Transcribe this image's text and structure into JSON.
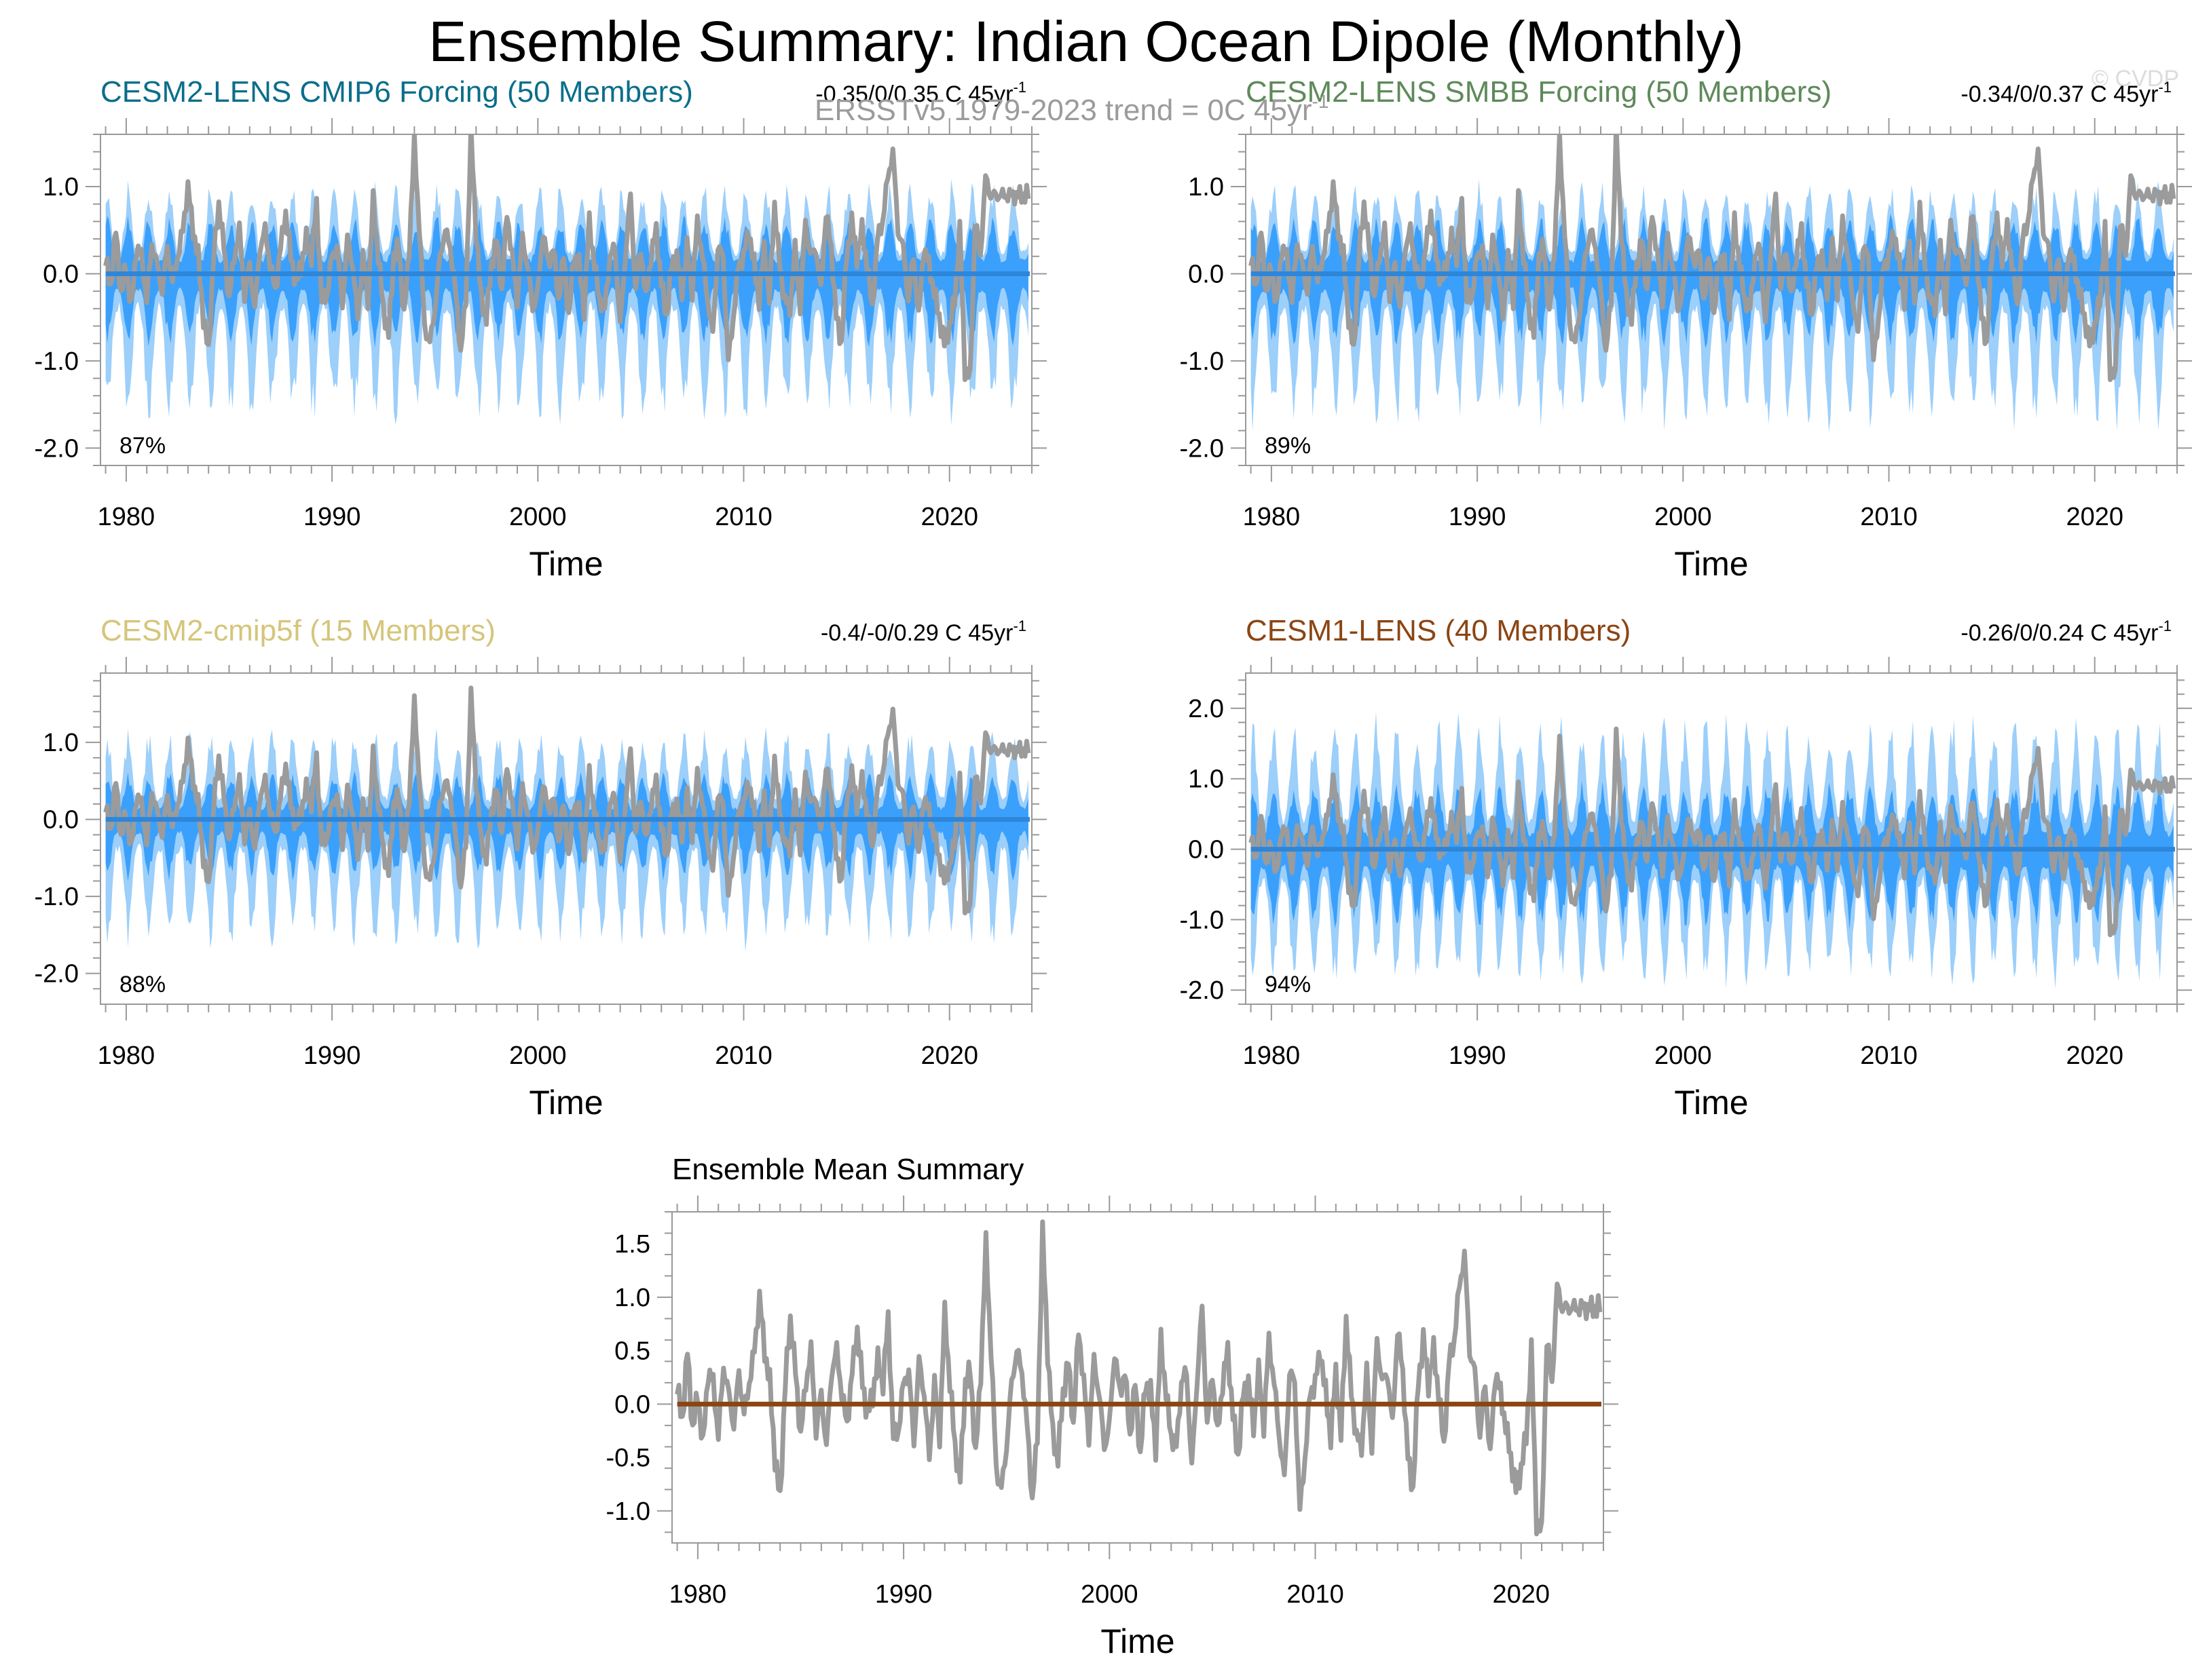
{
  "figure": {
    "title": "Ensemble Summary: Indian Ocean Dipole (Monthly)",
    "obs_note": "ERSSTv5 1979-2023 trend = 0C 45yr",
    "obs_note_sup": "-1",
    "copyright": "© CVDP"
  },
  "colors": {
    "outer_band": "#9ccffa",
    "inner_band": "#3aa0fb",
    "ens_mean_line": "#2e86d9",
    "obs_line": "#9b9b9b",
    "summary_mean_line": "#8b4513",
    "axis": "#999999",
    "text": "#000000",
    "title_cesm2_lens": "#0b6e8a",
    "title_smbb": "#5e8a5a",
    "title_cmip5f": "#d6c57a",
    "title_cesm1": "#8b4513"
  },
  "chart_data": [
    {
      "id": "p1",
      "type": "area",
      "title": "CESM2-LENS CMIP6 Forcing (50 Members)",
      "trend_text": "-0.35/0/0.35 C 45yr",
      "trend_sup": "-1",
      "percent_label": "87%",
      "xlabel": "Time",
      "xlim": [
        1978.75,
        2024.0
      ],
      "ylim": [
        -2.2,
        1.6
      ],
      "yticks": [
        -2.0,
        -1.0,
        0.0,
        1.0
      ],
      "ytick_labels": [
        "-2.0",
        "-1.0",
        "0.0",
        "1.0"
      ],
      "xticks": [
        1980,
        1990,
        2000,
        2010,
        2020
      ],
      "xtick_labels": [
        "1980",
        "1990",
        "2000",
        "2010",
        "2020"
      ],
      "series": [
        {
          "name": "ensemble 10-90% range",
          "style": "outer_band",
          "amplitude_lower": -1.55,
          "amplitude_upper": 0.95
        },
        {
          "name": "ensemble 25-75% range",
          "style": "inner_band",
          "amplitude_lower": -0.75,
          "amplitude_upper": 0.6
        },
        {
          "name": "ensemble mean",
          "style": "ens_mean_line",
          "value": 0.0
        },
        {
          "name": "ERSSTv5 observations",
          "style": "obs_line",
          "source": "obs"
        }
      ]
    },
    {
      "id": "p2",
      "type": "area",
      "title": "CESM2-LENS SMBB Forcing (50 Members)",
      "trend_text": "-0.34/0/0.37 C 45yr",
      "trend_sup": "-1",
      "percent_label": "89%",
      "xlabel": "Time",
      "xlim": [
        1978.75,
        2024.0
      ],
      "ylim": [
        -2.2,
        1.6
      ],
      "yticks": [
        -2.0,
        -1.0,
        0.0,
        1.0
      ],
      "ytick_labels": [
        "-2.0",
        "-1.0",
        "0.0",
        "1.0"
      ],
      "xticks": [
        1980,
        1990,
        2000,
        2010,
        2020
      ],
      "xtick_labels": [
        "1980",
        "1990",
        "2000",
        "2010",
        "2020"
      ],
      "series": [
        {
          "name": "ensemble 10-90% range",
          "style": "outer_band",
          "amplitude_lower": -1.6,
          "amplitude_upper": 0.95
        },
        {
          "name": "ensemble 25-75% range",
          "style": "inner_band",
          "amplitude_lower": -0.75,
          "amplitude_upper": 0.6
        },
        {
          "name": "ensemble mean",
          "style": "ens_mean_line",
          "value": 0.0
        },
        {
          "name": "ERSSTv5 observations",
          "style": "obs_line",
          "source": "obs"
        }
      ]
    },
    {
      "id": "p3",
      "type": "area",
      "title": "CESM2-cmip5f (15 Members)",
      "trend_text": "-0.4/-0/0.29 C 45yr",
      "trend_sup": "-1",
      "percent_label": "88%",
      "xlabel": "Time",
      "xlim": [
        1978.75,
        2024.0
      ],
      "ylim": [
        -2.4,
        1.9
      ],
      "yticks": [
        -2.0,
        -1.0,
        0.0,
        1.0
      ],
      "ytick_labels": [
        "-2.0",
        "-1.0",
        "0.0",
        "1.0"
      ],
      "xticks": [
        1980,
        1990,
        2000,
        2010,
        2020
      ],
      "xtick_labels": [
        "1980",
        "1990",
        "2000",
        "2010",
        "2020"
      ],
      "series": [
        {
          "name": "ensemble 10-90% range",
          "style": "outer_band",
          "amplitude_lower": -1.5,
          "amplitude_upper": 1.05
        },
        {
          "name": "ensemble 25-75% range",
          "style": "inner_band",
          "amplitude_lower": -0.7,
          "amplitude_upper": 0.55
        },
        {
          "name": "ensemble mean",
          "style": "ens_mean_line",
          "value": 0.0
        },
        {
          "name": "ERSSTv5 observations",
          "style": "obs_line",
          "source": "obs"
        }
      ]
    },
    {
      "id": "p4",
      "type": "area",
      "title": "CESM1-LENS (40 Members)",
      "trend_text": "-0.26/0/0.24 C 45yr",
      "trend_sup": "-1",
      "percent_label": "94%",
      "xlabel": "Time",
      "xlim": [
        1978.75,
        2024.0
      ],
      "ylim": [
        -2.2,
        2.5
      ],
      "yticks": [
        -2.0,
        -1.0,
        0.0,
        1.0,
        2.0
      ],
      "ytick_labels": [
        "-2.0",
        "-1.0",
        "0.0",
        "1.0",
        "2.0"
      ],
      "xticks": [
        1980,
        1990,
        2000,
        2010,
        2020
      ],
      "xtick_labels": [
        "1980",
        "1990",
        "2000",
        "2010",
        "2020"
      ],
      "series": [
        {
          "name": "ensemble 10-90% range",
          "style": "outer_band",
          "amplitude_lower": -1.75,
          "amplitude_upper": 1.7
        },
        {
          "name": "ensemble 25-75% range",
          "style": "inner_band",
          "amplitude_lower": -1.0,
          "amplitude_upper": 0.85
        },
        {
          "name": "ensemble mean",
          "style": "ens_mean_line",
          "value": 0.0
        },
        {
          "name": "ERSSTv5 observations",
          "style": "obs_line",
          "source": "obs"
        }
      ]
    },
    {
      "id": "p5",
      "type": "line",
      "title": "Ensemble Mean Summary",
      "xlabel": "Time",
      "xlim": [
        1978.75,
        2024.0
      ],
      "ylim": [
        -1.3,
        1.8
      ],
      "yticks": [
        -1.0,
        -0.5,
        0.0,
        0.5,
        1.0,
        1.5
      ],
      "ytick_labels": [
        "-1.0",
        "-0.5",
        "0.0",
        "0.5",
        "1.0",
        "1.5"
      ],
      "xticks": [
        1980,
        1990,
        2000,
        2010,
        2020
      ],
      "xtick_labels": [
        "1980",
        "1990",
        "2000",
        "2010",
        "2020"
      ],
      "series": [
        {
          "name": "ERSSTv5 observations",
          "style": "obs_line",
          "source": "obs"
        },
        {
          "name": "ensemble means",
          "style": "summary_mean_line",
          "value": 0.0
        }
      ]
    }
  ],
  "obs": {
    "x_start": 1979.0,
    "x_step": 0.25,
    "values": [
      0.15,
      -0.15,
      0.5,
      -0.25,
      0.1,
      -0.4,
      0.3,
      0.2,
      -0.3,
      0.35,
      0.1,
      -0.2,
      0.3,
      -0.1,
      0.2,
      0.5,
      1.0,
      0.5,
      0.2,
      -0.5,
      -0.9,
      0.2,
      0.8,
      0.3,
      -0.3,
      0.2,
      0.5,
      -0.25,
      0.1,
      -0.4,
      0.3,
      0.5,
      0.1,
      -0.2,
      0.3,
      0.7,
      0.2,
      -0.1,
      0.1,
      0.4,
      0.2,
      0.8,
      -0.3,
      -0.25,
      0.2,
      0.3,
      -0.35,
      0.4,
      0.1,
      -0.5,
      0.2,
      -0.3,
      0.85,
      0.2,
      -0.4,
      -0.7,
      0.2,
      0.3,
      -0.5,
      0.3,
      1.5,
      0.5,
      -0.6,
      -0.8,
      -0.4,
      0.2,
      0.5,
      0.3,
      -0.2,
      -0.9,
      -0.3,
      1.6,
      0.5,
      -0.3,
      -0.5,
      0.1,
      0.4,
      -0.2,
      0.7,
      0.2,
      -0.3,
      0.4,
      0.1,
      -0.4,
      -0.2,
      0.5,
      0.1,
      0.3,
      -0.3,
      0.2,
      -0.5,
      0.2,
      0.1,
      -0.4,
      0.6,
      0.1,
      -0.3,
      -0.4,
      0.2,
      0.3,
      -0.6,
      0.2,
      0.9,
      -0.2,
      0.3,
      -0.3,
      0.2,
      0.5,
      -0.1,
      -0.5,
      0.1,
      0.2,
      -0.2,
      0.3,
      -0.2,
      0.6,
      0.2,
      -0.3,
      -0.7,
      0.3,
      0.2,
      -1.0,
      -0.5,
      0.1,
      0.2,
      0.5,
      0.1,
      -0.3,
      0.3,
      -0.3,
      0.8,
      0.1,
      -0.3,
      -0.4,
      0.3,
      -0.4,
      0.6,
      0.2,
      0.3,
      -0.2,
      0.7,
      0.3,
      -0.5,
      -0.8,
      0.2,
      0.6,
      0.2,
      0.5,
      0.1,
      -0.4,
      0.4,
      0.6,
      1.1,
      1.4,
      0.5,
      0.3,
      -0.3,
      0.2,
      -0.5,
      0.3,
      0.1,
      -0.2,
      -0.5,
      -0.8,
      -0.6,
      -0.3,
      0.5,
      -1.1,
      -1.2,
      0.6,
      0.2,
      1.1,
      0.9
    ]
  }
}
